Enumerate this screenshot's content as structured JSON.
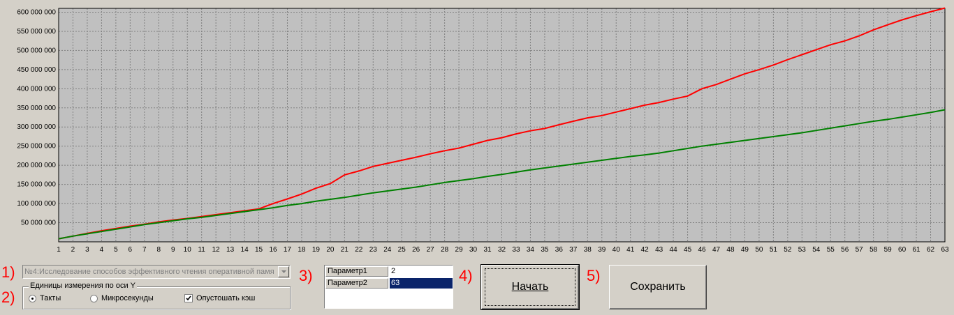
{
  "chart_data": {
    "type": "line",
    "x": [
      1,
      2,
      3,
      4,
      5,
      6,
      7,
      8,
      9,
      10,
      11,
      12,
      13,
      14,
      15,
      16,
      17,
      18,
      19,
      20,
      21,
      22,
      23,
      24,
      25,
      26,
      27,
      28,
      29,
      30,
      31,
      32,
      33,
      34,
      35,
      36,
      37,
      38,
      39,
      40,
      41,
      42,
      43,
      44,
      45,
      46,
      47,
      48,
      49,
      50,
      51,
      52,
      53,
      54,
      55,
      56,
      57,
      58,
      59,
      60,
      61,
      62,
      63
    ],
    "ylim": [
      0,
      610000000
    ],
    "yticks": [
      "50 000 000",
      "100 000 000",
      "150 000 000",
      "200 000 000",
      "250 000 000",
      "300 000 000",
      "350 000 000",
      "400 000 000",
      "450 000 000",
      "500 000 000",
      "550 000 000",
      "600 000 000"
    ],
    "grid": true,
    "series": [
      {
        "color": "#ff0000",
        "values": [
          8000000,
          15000000,
          22000000,
          29000000,
          35000000,
          41000000,
          46000000,
          52000000,
          57000000,
          61000000,
          66000000,
          71000000,
          76000000,
          81000000,
          86000000,
          100000000,
          112000000,
          125000000,
          140000000,
          152000000,
          175000000,
          185000000,
          197000000,
          205000000,
          213000000,
          221000000,
          230000000,
          238000000,
          245000000,
          255000000,
          265000000,
          272000000,
          282000000,
          290000000,
          296000000,
          306000000,
          315000000,
          324000000,
          330000000,
          339000000,
          348000000,
          357000000,
          364000000,
          373000000,
          381000000,
          400000000,
          411000000,
          425000000,
          439000000,
          450000000,
          462000000,
          476000000,
          489000000,
          502000000,
          515000000,
          525000000,
          538000000,
          554000000,
          567000000,
          580000000,
          591000000,
          601000000,
          611000000
        ]
      },
      {
        "color": "#008000",
        "values": [
          8000000,
          15000000,
          21000000,
          27000000,
          33000000,
          39000000,
          45000000,
          50000000,
          55000000,
          60000000,
          64000000,
          69000000,
          74000000,
          79000000,
          84000000,
          89000000,
          95000000,
          100000000,
          106000000,
          111000000,
          116000000,
          122000000,
          128000000,
          133000000,
          138000000,
          143000000,
          149000000,
          155000000,
          160000000,
          165000000,
          171000000,
          176000000,
          182000000,
          188000000,
          193000000,
          198000000,
          203000000,
          208000000,
          213000000,
          218000000,
          223000000,
          227000000,
          232000000,
          238000000,
          244000000,
          250000000,
          255000000,
          260000000,
          265000000,
          270000000,
          275000000,
          280000000,
          285000000,
          291000000,
          297000000,
          303000000,
          309000000,
          315000000,
          320000000,
          326000000,
          332000000,
          338000000,
          345000000
        ]
      }
    ]
  },
  "labels": {
    "step1": "1)",
    "step2": "2)",
    "step3": "3)",
    "step4": "4)",
    "step5": "5)"
  },
  "test_select": {
    "value": "№4:Исследование способов эффективного  чтения оперативной памя"
  },
  "units_group": {
    "title": "Единицы измерения по оси Y",
    "options": [
      "Такты",
      "Микросекунды"
    ],
    "selected": "Такты",
    "flush_cache_label": "Опустошать кэш",
    "flush_cache_checked": true
  },
  "params": [
    {
      "name": "Параметр1",
      "value": "2"
    },
    {
      "name": "Параметр2",
      "value": "63"
    }
  ],
  "buttons": {
    "start": "Начать",
    "save": "Сохранить"
  },
  "icons": {
    "combo_arrow": "chevron-down-icon",
    "check": "check-icon"
  }
}
